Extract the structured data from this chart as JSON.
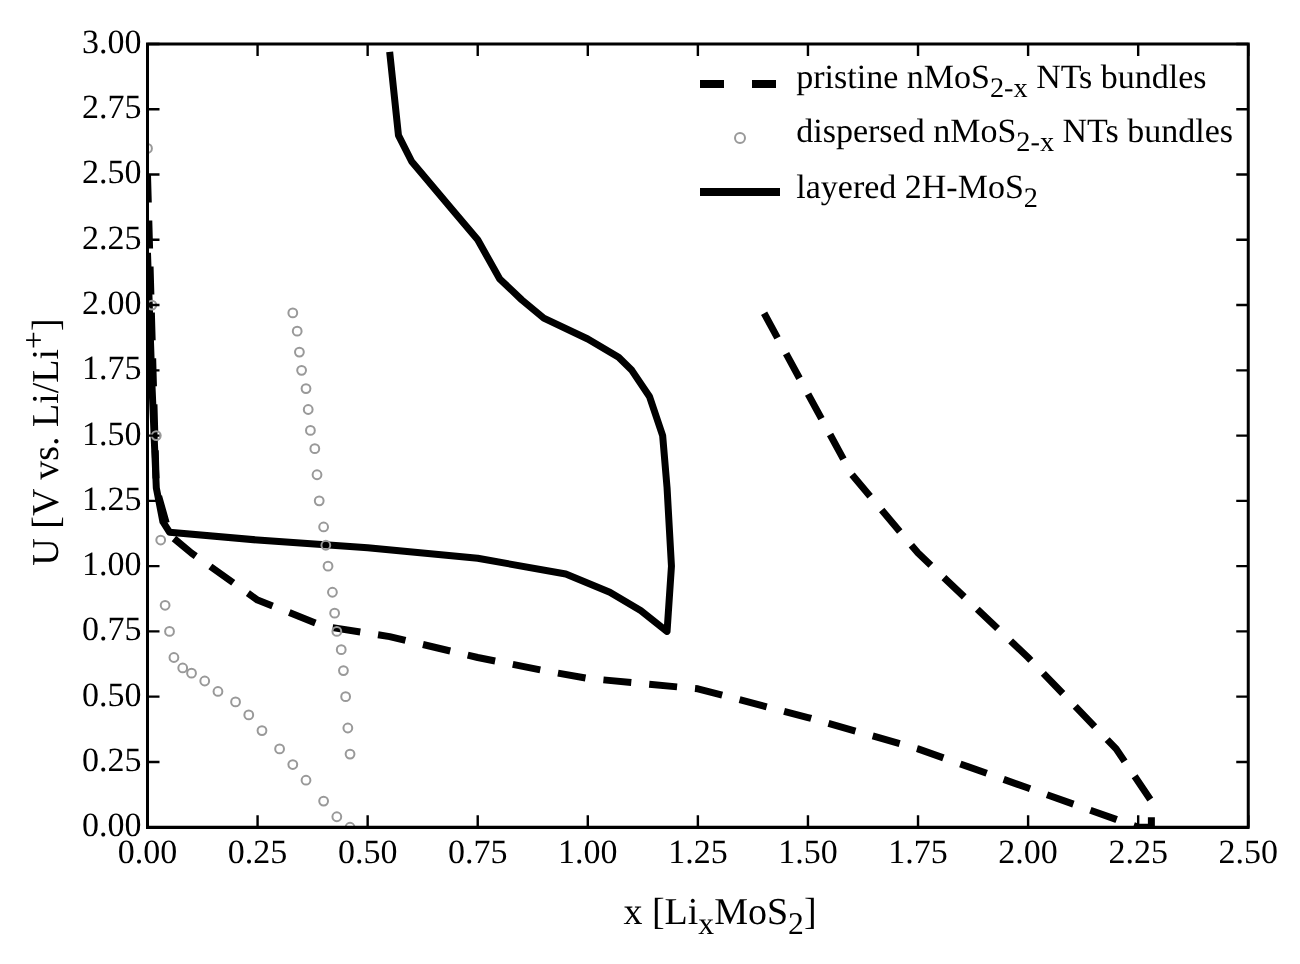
{
  "chart_data": {
    "type": "line",
    "xlabel": "x [Li$_{x}$MoS$_{2}$]",
    "ylabel": "U [V vs. Li/Li$^{+}$]",
    "xlim": [
      0,
      2.5
    ],
    "ylim": [
      0,
      3
    ],
    "xticks": [
      {
        "value": 0,
        "label": "0.00"
      },
      {
        "value": 0.25,
        "label": "0.25"
      },
      {
        "value": 0.5,
        "label": "0.50"
      },
      {
        "value": 0.75,
        "label": "0.75"
      },
      {
        "value": 1,
        "label": "1.00"
      },
      {
        "value": 1.25,
        "label": "1.25"
      },
      {
        "value": 1.5,
        "label": "1.50"
      },
      {
        "value": 1.75,
        "label": "1.75"
      },
      {
        "value": 2,
        "label": "2.00"
      },
      {
        "value": 2.25,
        "label": "2.25"
      },
      {
        "value": 2.5,
        "label": "2.50"
      }
    ],
    "yticks": [
      {
        "value": 0,
        "label": "0.00"
      },
      {
        "value": 0.25,
        "label": "0.25"
      },
      {
        "value": 0.5,
        "label": "0.50"
      },
      {
        "value": 0.75,
        "label": "0.75"
      },
      {
        "value": 1,
        "label": "1.00"
      },
      {
        "value": 1.25,
        "label": "1.25"
      },
      {
        "value": 1.5,
        "label": "1.50"
      },
      {
        "value": 1.75,
        "label": "1.75"
      },
      {
        "value": 2,
        "label": "2.00"
      },
      {
        "value": 2.25,
        "label": "2.25"
      },
      {
        "value": 2.5,
        "label": "2.50"
      },
      {
        "value": 2.75,
        "label": "2.75"
      },
      {
        "value": 3,
        "label": "3.00"
      }
    ],
    "grid": false,
    "legend": "top right",
    "series": [
      {
        "name": "pristine nMoS$_{2-x}$ NTs bundles",
        "color": "#000000",
        "line_style": "dashed",
        "marker": "none",
        "x": [
          0,
          0.02,
          0.05,
          0.1,
          0.25,
          0.4,
          0.55,
          0.75,
          0.9,
          1,
          1.25,
          1.5,
          1.75,
          2,
          2.2,
          2.25,
          2.28,
          2.28,
          2.2,
          2,
          1.75,
          1.6,
          1.4
        ],
        "values": [
          2.5,
          1.3,
          1.12,
          1.05,
          0.87,
          0.77,
          0.73,
          0.65,
          0.6,
          0.57,
          0.53,
          0.42,
          0.3,
          0.15,
          0.03,
          0,
          0,
          0.1,
          0.3,
          0.65,
          1.05,
          1.35,
          1.97
        ]
      },
      {
        "name": "dispersed nMoS$_{2-x}$ NTs bundles",
        "color": "#999999",
        "type": "scatter",
        "marker": "circle",
        "x": [
          0,
          0.01,
          0.02,
          0.03,
          0.04,
          0.05,
          0.06,
          0.08,
          0.1,
          0.13,
          0.16,
          0.2,
          0.23,
          0.26,
          0.3,
          0.33,
          0.36,
          0.4,
          0.43,
          0.46,
          0.46,
          0.455,
          0.45,
          0.445,
          0.44,
          0.43,
          0.425,
          0.42,
          0.41,
          0.405,
          0.4,
          0.39,
          0.385,
          0.38,
          0.37,
          0.365,
          0.36,
          0.35,
          0.345,
          0.34,
          0.33
        ],
        "values": [
          2.6,
          2,
          1.5,
          1.1,
          0.85,
          0.75,
          0.65,
          0.61,
          0.59,
          0.56,
          0.52,
          0.48,
          0.43,
          0.37,
          0.3,
          0.24,
          0.18,
          0.1,
          0.04,
          0,
          0.28,
          0.38,
          0.5,
          0.6,
          0.68,
          0.75,
          0.82,
          0.9,
          1,
          1.08,
          1.15,
          1.25,
          1.35,
          1.45,
          1.52,
          1.6,
          1.68,
          1.75,
          1.82,
          1.9,
          1.97
        ]
      },
      {
        "name": "layered  2H-MoS$_{2}$",
        "color": "#000000",
        "line_style": "solid",
        "marker": "none",
        "x": [
          0,
          0.01,
          0.02,
          0.035,
          0.05,
          0.25,
          0.5,
          0.75,
          0.95,
          1.05,
          1.12,
          1.18,
          1.19,
          1.18,
          1.17,
          1.14,
          1.1,
          1.07,
          1.0,
          0.9,
          0.85,
          0.8,
          0.75,
          0.7,
          0.6,
          0.57,
          0.55
        ],
        "values": [
          2.2,
          1.7,
          1.3,
          1.17,
          1.13,
          1.1,
          1.07,
          1.03,
          0.97,
          0.9,
          0.83,
          0.75,
          1.0,
          1.3,
          1.5,
          1.65,
          1.75,
          1.8,
          1.87,
          1.95,
          2.02,
          2.1,
          2.25,
          2.35,
          2.55,
          2.65,
          2.97
        ]
      }
    ]
  }
}
